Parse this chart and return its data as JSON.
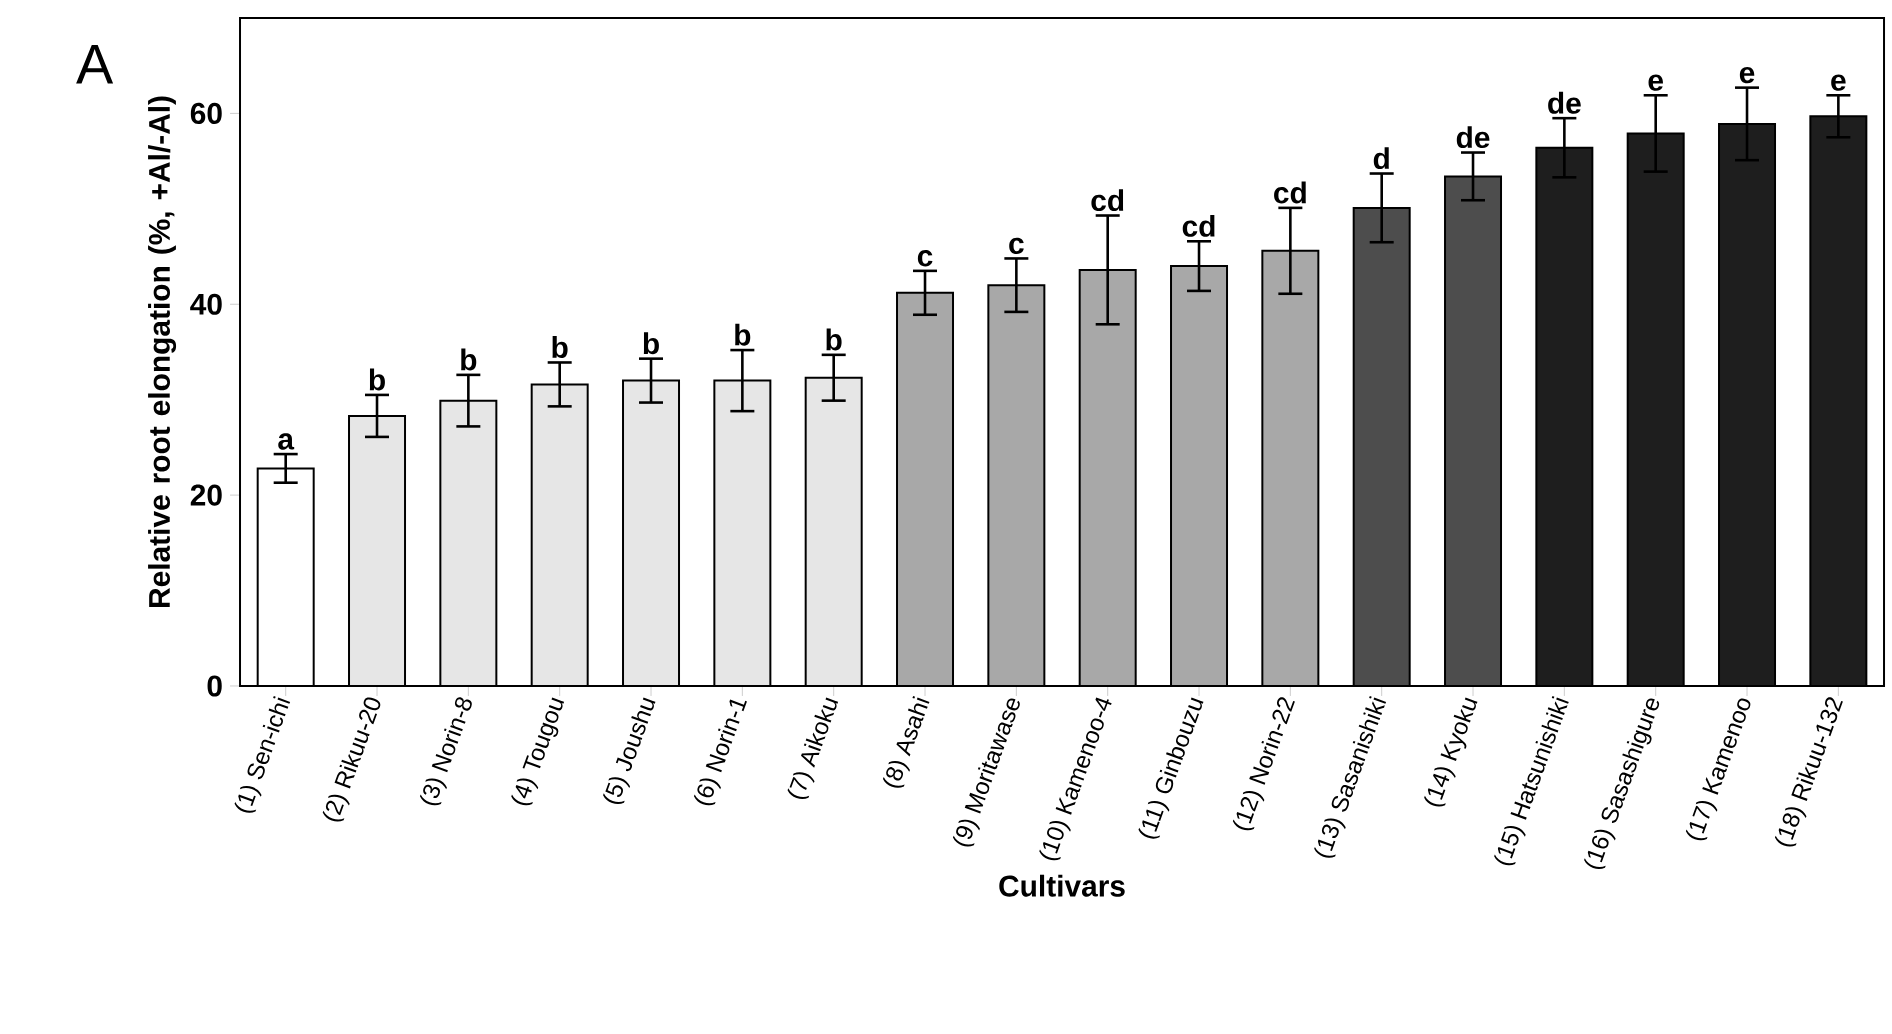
{
  "chart_data": {
    "type": "bar",
    "ylabel": "Relative root elongation (%, +Al/-Al)",
    "xlabel": "Cultivars",
    "categories": [
      "(1) Sen-ichi",
      "(2) Rikuu-20",
      "(3) Norin-8",
      "(4) Tougou",
      "(5) Joushu",
      "(6) Norin-1",
      "(7) Aikoku",
      "(8) Asahi",
      "(9) Moritawase",
      "(10) Kamenoo-4",
      "(11) Ginbouzu",
      "(12) Norin-22",
      "(13) Sasanishiki",
      "(14) Kyoku",
      "(15) Hatsunishiki",
      "(16) Sasashigure",
      "(17) Kamenoo",
      "(18) Rikuu-132"
    ],
    "values": [
      22.8,
      28.3,
      29.9,
      31.6,
      32.0,
      32.0,
      32.3,
      41.2,
      42.0,
      43.6,
      44.0,
      45.6,
      50.1,
      53.4,
      56.4,
      57.9,
      58.9,
      59.7
    ],
    "errors": [
      1.5,
      2.2,
      2.7,
      2.3,
      2.3,
      3.2,
      2.4,
      2.3,
      2.8,
      5.7,
      2.6,
      4.5,
      3.6,
      2.5,
      3.1,
      4.0,
      3.8,
      2.2
    ],
    "colors": [
      "#ffffff",
      "#e6e6e6",
      "#e6e6e6",
      "#e6e6e6",
      "#e6e6e6",
      "#e6e6e6",
      "#e6e6e6",
      "#a8a8a8",
      "#a8a8a8",
      "#a8a8a8",
      "#a8a8a8",
      "#a8a8a8",
      "#4d4d4d",
      "#4d4d4d",
      "#1e1e1e",
      "#1e1e1e",
      "#1e1e1e",
      "#1e1e1e"
    ],
    "ylim": [
      0,
      70
    ],
    "yticks": [
      0,
      20,
      40,
      60
    ],
    "grid": false,
    "annotations": [
      "A",
      {
        "text": "a",
        "x": "(1) Sen-ichi",
        "y": 24.3
      },
      {
        "text": "b",
        "x": "(2) Rikuu-20",
        "y": 30.5
      },
      {
        "text": "b",
        "x": "(3) Norin-8",
        "y": 32.6
      },
      {
        "text": "b",
        "x": "(4) Tougou",
        "y": 33.9
      },
      {
        "text": "b",
        "x": "(5) Joushu",
        "y": 34.3
      },
      {
        "text": "b",
        "x": "(6) Norin-1",
        "y": 35.2
      },
      {
        "text": "b",
        "x": "(7) Aikoku",
        "y": 34.7
      },
      {
        "text": "c",
        "x": "(8) Asahi",
        "y": 43.5
      },
      {
        "text": "c",
        "x": "(9) Moritawase",
        "y": 44.8
      },
      {
        "text": "cd",
        "x": "(10) Kamenoo-4",
        "y": 49.3
      },
      {
        "text": "cd",
        "x": "(11) Ginbouzu",
        "y": 46.6
      },
      {
        "text": "cd",
        "x": "(12) Norin-22",
        "y": 50.1
      },
      {
        "text": "d",
        "x": "(13) Sasanishiki",
        "y": 53.7
      },
      {
        "text": "de",
        "x": "(14) Kyoku",
        "y": 55.9
      },
      {
        "text": "de",
        "x": "(15) Hatsunishiki",
        "y": 59.5
      },
      {
        "text": "e",
        "x": "(16) Sasashigure",
        "y": 61.9
      },
      {
        "text": "e",
        "x": "(17) Kamenoo",
        "y": 62.7
      },
      {
        "text": "e",
        "x": "(18) Rikuu-132",
        "y": 61.9
      }
    ]
  }
}
